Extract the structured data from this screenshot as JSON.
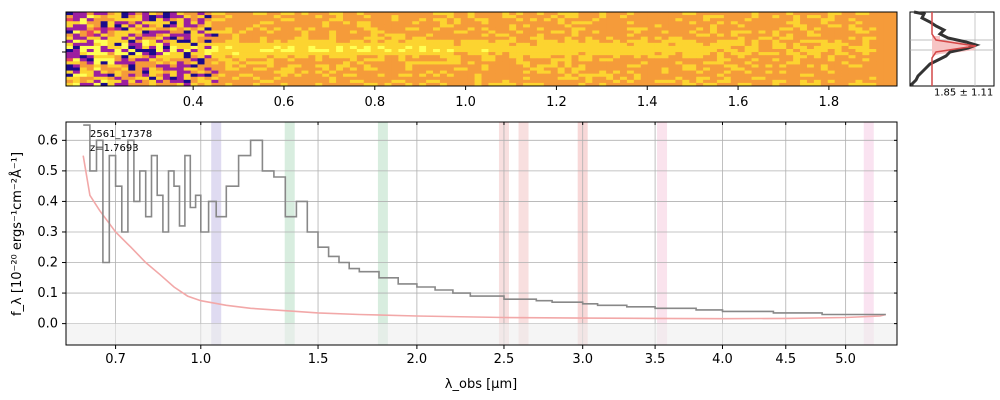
{
  "chart_data": [
    {
      "type": "heatmap",
      "panel": "2d-spectrum",
      "x_tick_labels": [
        "0.4",
        "0.6",
        "0.8",
        "1.0",
        "1.2",
        "1.4",
        "1.6",
        "1.8"
      ],
      "x_ticks": [
        0.4,
        0.6,
        0.8,
        1.0,
        1.2,
        1.4,
        1.6,
        1.8
      ],
      "colormap": [
        "#1a0a8c",
        "#9c1fa0",
        "#e8425e",
        "#f59b3a",
        "#fcd430",
        "#ffff55"
      ]
    },
    {
      "type": "histogram",
      "panel": "profile",
      "annotation": "1.85 ± 1.11",
      "color": "#d44848"
    },
    {
      "type": "line",
      "panel": "1d-spectrum",
      "annotation_id": "2561_17378",
      "annotation_z": "z=1.7693",
      "xlabel": "λ_obs [μm]",
      "ylabel": "f_λ [10⁻²⁰ ergs⁻¹cm⁻²Å⁻¹]",
      "xlim": [
        0.55,
        5.45
      ],
      "ylim": [
        -0.07,
        0.66
      ],
      "x_tick_labels": [
        "0.7",
        "1.0",
        "1.5",
        "2.0",
        "2.5",
        "3.0",
        "3.5",
        "4.0",
        "4.5",
        "5.0"
      ],
      "x_ticks": [
        0.7,
        1.0,
        1.5,
        2.0,
        2.5,
        3.0,
        3.5,
        4.0,
        4.5,
        5.0
      ],
      "y_tick_labels": [
        "0.0",
        "0.1",
        "0.2",
        "0.3",
        "0.4",
        "0.5",
        "0.6"
      ],
      "y_ticks": [
        0.0,
        0.1,
        0.2,
        0.3,
        0.4,
        0.5,
        0.6
      ],
      "grid": true,
      "series": [
        {
          "role": "flux",
          "color": "#888888",
          "x": [
            0.6,
            0.62,
            0.64,
            0.66,
            0.68,
            0.7,
            0.72,
            0.74,
            0.76,
            0.78,
            0.8,
            0.82,
            0.84,
            0.86,
            0.88,
            0.9,
            0.92,
            0.94,
            0.96,
            0.98,
            1.0,
            1.03,
            1.06,
            1.1,
            1.15,
            1.2,
            1.25,
            1.3,
            1.35,
            1.4,
            1.45,
            1.5,
            1.55,
            1.6,
            1.65,
            1.7,
            1.8,
            1.9,
            2.0,
            2.1,
            2.2,
            2.3,
            2.4,
            2.5,
            2.6,
            2.7,
            2.8,
            2.9,
            3.0,
            3.1,
            3.2,
            3.3,
            3.4,
            3.5,
            3.6,
            3.7,
            3.8,
            3.9,
            4.0,
            4.1,
            4.2,
            4.3,
            4.4,
            4.5,
            4.6,
            4.7,
            4.8,
            4.9,
            5.0,
            5.1,
            5.2,
            5.3,
            5.35
          ],
          "y": [
            0.65,
            0.5,
            0.6,
            0.2,
            0.55,
            0.45,
            0.3,
            0.6,
            0.4,
            0.5,
            0.35,
            0.55,
            0.42,
            0.3,
            0.5,
            0.45,
            0.32,
            0.55,
            0.38,
            0.42,
            0.3,
            0.4,
            0.35,
            0.45,
            0.55,
            0.6,
            0.5,
            0.48,
            0.35,
            0.4,
            0.3,
            0.25,
            0.22,
            0.2,
            0.18,
            0.17,
            0.15,
            0.13,
            0.12,
            0.11,
            0.1,
            0.09,
            0.09,
            0.08,
            0.08,
            0.075,
            0.07,
            0.07,
            0.065,
            0.06,
            0.06,
            0.055,
            0.055,
            0.05,
            0.05,
            0.05,
            0.045,
            0.045,
            0.04,
            0.04,
            0.04,
            0.04,
            0.035,
            0.035,
            0.035,
            0.035,
            0.03,
            0.03,
            0.03,
            0.03,
            0.03,
            0.03,
            0.03
          ]
        },
        {
          "role": "error",
          "color": "#f2a8a8",
          "x": [
            0.6,
            0.62,
            0.65,
            0.7,
            0.75,
            0.8,
            0.85,
            0.9,
            0.95,
            1.0,
            1.1,
            1.2,
            1.3,
            1.4,
            1.5,
            1.7,
            2.0,
            2.5,
            3.0,
            3.5,
            4.0,
            4.5,
            5.0,
            5.3,
            5.35
          ],
          "y": [
            0.55,
            0.42,
            0.37,
            0.3,
            0.25,
            0.2,
            0.16,
            0.12,
            0.09,
            0.075,
            0.06,
            0.05,
            0.045,
            0.04,
            0.035,
            0.03,
            0.025,
            0.02,
            0.018,
            0.017,
            0.016,
            0.017,
            0.02,
            0.025,
            0.03
          ]
        }
      ],
      "line_bands": [
        {
          "x": 1.06,
          "color": "#b8b0e0"
        },
        {
          "x": 1.37,
          "color": "#a8d8b8"
        },
        {
          "x": 1.82,
          "color": "#a8d8b8"
        },
        {
          "x": 2.5,
          "color": "#f0b8b8"
        },
        {
          "x": 2.62,
          "color": "#f0b8b8"
        },
        {
          "x": 3.0,
          "color": "#f0a8a8"
        },
        {
          "x": 3.55,
          "color": "#f5c0d8"
        },
        {
          "x": 5.2,
          "color": "#f5c0e0"
        }
      ]
    }
  ]
}
